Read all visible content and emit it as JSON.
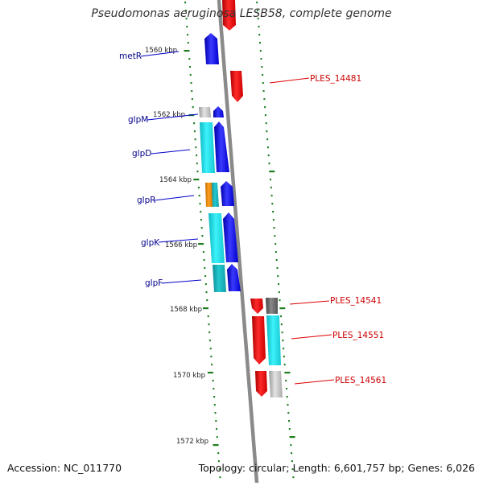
{
  "title": "Pseudomonas aeruginosa LESB58, complete genome",
  "footer": {
    "accession": "Accession: NC_011770",
    "topology": "Topology: circular; Length: 6,601,757 bp; Genes: 6,026"
  },
  "colors": {
    "forward": "#0000ee",
    "reverse": "#ee0000",
    "cyan": "#22e5f0",
    "teal": "#1abfc6",
    "gray": "#c0c0c0",
    "darkgray": "#6a6a6a",
    "orange": "#f08a00",
    "tick": "#1e7d1e",
    "backbone": "#888888",
    "forward_label": "#00008b",
    "reverse_label": "#cc0000"
  },
  "scale_labels": [
    "1560 kbp",
    "1562 kbp",
    "1564 kbp",
    "1566 kbp",
    "1568 kbp",
    "1570 kbp",
    "1572 kbp"
  ],
  "gene_labels": {
    "forward": [
      "metR",
      "glpM",
      "glpD",
      "glpR",
      "glpK",
      "glpF"
    ],
    "reverse": [
      "PLES_14481",
      "PLES_14541",
      "PLES_14551",
      "PLES_14561"
    ]
  }
}
